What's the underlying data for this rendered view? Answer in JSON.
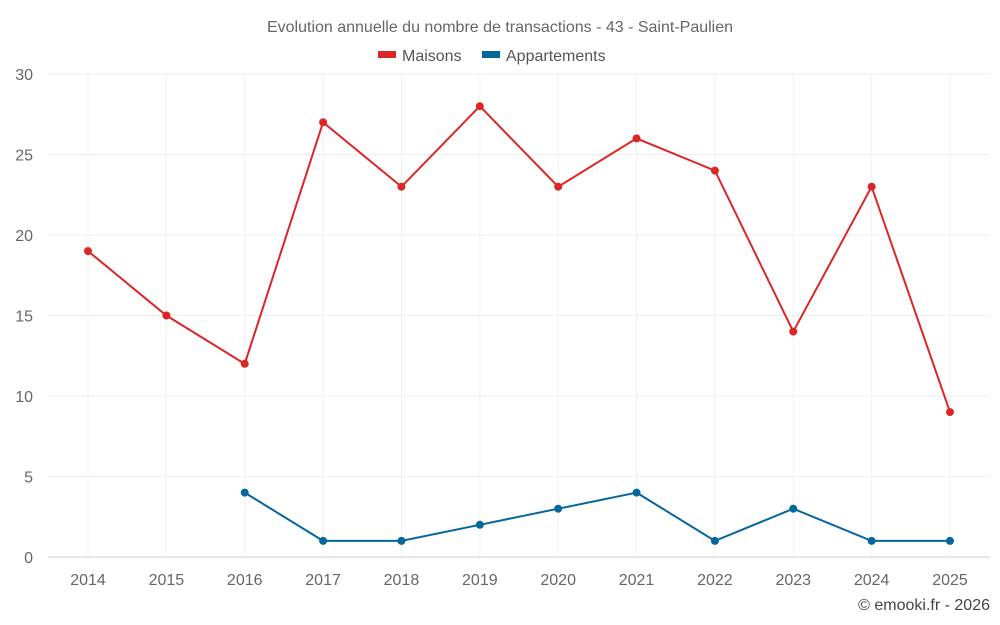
{
  "chart_data": {
    "type": "line",
    "title": "Evolution annuelle du nombre de transactions - 43 - Saint-Paulien",
    "xlabel": "",
    "ylabel": "",
    "categories": [
      "2014",
      "2015",
      "2016",
      "2017",
      "2018",
      "2019",
      "2020",
      "2021",
      "2022",
      "2023",
      "2024",
      "2025"
    ],
    "ylim": [
      0,
      30
    ],
    "yticks": [
      "0",
      "5",
      "10",
      "15",
      "20",
      "25",
      "30"
    ],
    "grid": true,
    "legend_position": "top-center",
    "series": [
      {
        "name": "Maisons",
        "color": "#dc2626",
        "values": [
          19,
          15,
          12,
          27,
          23,
          28,
          23,
          26,
          24,
          14,
          23,
          9
        ]
      },
      {
        "name": "Appartements",
        "color": "#04679c",
        "values": [
          null,
          null,
          4,
          1,
          1,
          2,
          3,
          4,
          1,
          3,
          1,
          1
        ]
      }
    ],
    "credit": "© emooki.fr - 2026"
  }
}
